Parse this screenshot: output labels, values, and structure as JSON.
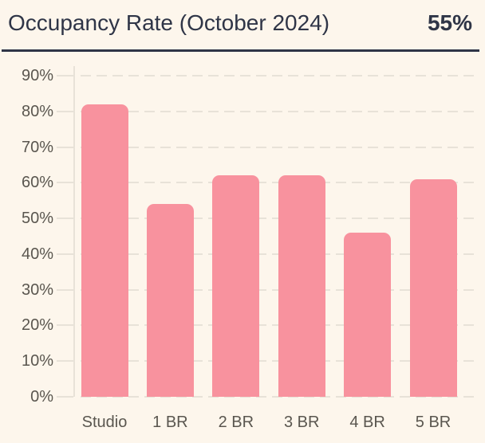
{
  "header": {
    "title": "Occupancy Rate (October 2024)",
    "value": "55%"
  },
  "colors": {
    "background": "#fdf6ec",
    "bar": "#f8929e",
    "heading": "#2f3547",
    "axis_text": "#5a564f",
    "grid": "#e8e2d8"
  },
  "chart_data": {
    "type": "bar",
    "title": "Occupancy Rate (October 2024)",
    "header_value": "55%",
    "categories": [
      "Studio",
      "1 BR",
      "2 BR",
      "3 BR",
      "4 BR",
      "5 BR"
    ],
    "values": [
      82,
      54,
      62,
      62,
      46,
      61
    ],
    "value_unit": "%",
    "xlabel": "",
    "ylabel": "",
    "ylim": [
      0,
      90
    ],
    "yticks": [
      "0%",
      "10%",
      "20%",
      "30%",
      "40%",
      "50%",
      "60%",
      "70%",
      "80%",
      "90%"
    ],
    "grid": "dashed-horizontal",
    "legend": "none"
  }
}
